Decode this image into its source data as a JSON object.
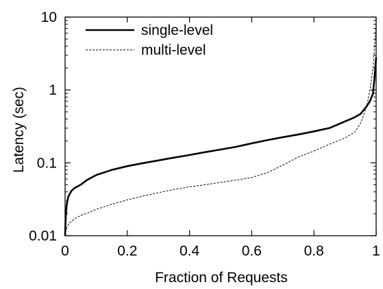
{
  "chart_data": {
    "type": "line",
    "title": "",
    "xlabel": "Fraction of Requests",
    "ylabel": "Latency (sec)",
    "xlim": [
      0,
      1
    ],
    "ylim": [
      0.01,
      10
    ],
    "y_scale": "log",
    "grid": false,
    "legend_position": "top-left",
    "x_ticks": [
      0,
      0.2,
      0.4,
      0.6,
      0.8,
      1
    ],
    "x_tick_labels": [
      "0",
      "0.2",
      "0.4",
      "0.6",
      "0.8",
      "1"
    ],
    "y_ticks": [
      0.01,
      0.1,
      1,
      10
    ],
    "y_tick_labels": [
      "0.01",
      "0.1",
      "1",
      "10"
    ],
    "series": [
      {
        "name": "single-level",
        "style": "solid",
        "color": "#000000",
        "x": [
          0,
          0.002,
          0.005,
          0.01,
          0.02,
          0.03,
          0.05,
          0.07,
          0.1,
          0.15,
          0.2,
          0.25,
          0.3,
          0.35,
          0.4,
          0.45,
          0.5,
          0.55,
          0.6,
          0.65,
          0.7,
          0.75,
          0.8,
          0.85,
          0.9,
          0.93,
          0.95,
          0.97,
          0.98,
          0.99,
          0.995,
          1.0
        ],
        "y": [
          0.01,
          0.018,
          0.026,
          0.034,
          0.041,
          0.045,
          0.05,
          0.058,
          0.068,
          0.08,
          0.09,
          0.099,
          0.108,
          0.118,
          0.128,
          0.14,
          0.152,
          0.166,
          0.185,
          0.205,
          0.225,
          0.245,
          0.27,
          0.3,
          0.37,
          0.42,
          0.47,
          0.6,
          0.7,
          0.9,
          1.5,
          2.8
        ]
      },
      {
        "name": "multi-level",
        "style": "dashed",
        "color": "#000000",
        "x": [
          0,
          0.003,
          0.007,
          0.015,
          0.03,
          0.05,
          0.08,
          0.1,
          0.15,
          0.2,
          0.25,
          0.3,
          0.35,
          0.4,
          0.45,
          0.5,
          0.55,
          0.6,
          0.65,
          0.7,
          0.75,
          0.8,
          0.85,
          0.9,
          0.93,
          0.95,
          0.97,
          0.98,
          0.99,
          0.995,
          1.0
        ],
        "y": [
          0.01,
          0.012,
          0.0135,
          0.015,
          0.017,
          0.019,
          0.021,
          0.023,
          0.027,
          0.031,
          0.035,
          0.039,
          0.043,
          0.047,
          0.05,
          0.054,
          0.058,
          0.063,
          0.073,
          0.093,
          0.12,
          0.145,
          0.18,
          0.22,
          0.26,
          0.35,
          0.6,
          1.0,
          2.0,
          4.0,
          8.0
        ]
      }
    ]
  }
}
